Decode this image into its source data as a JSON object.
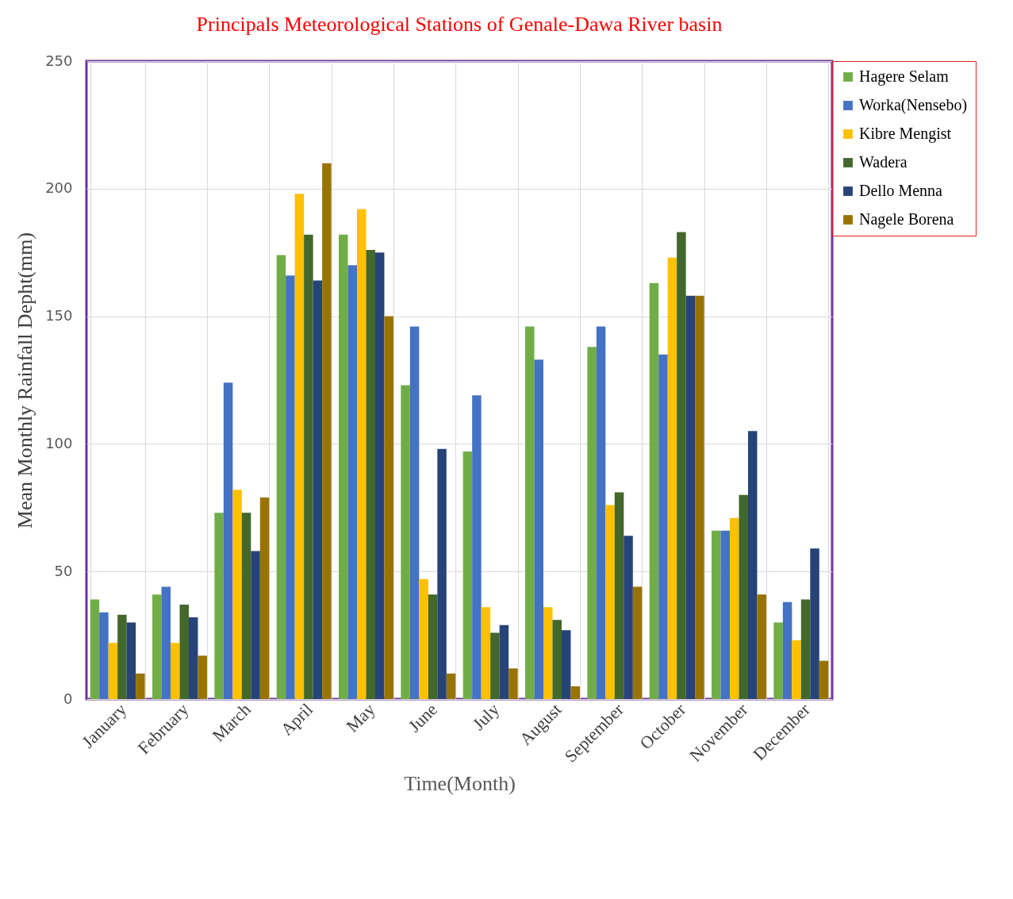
{
  "chart_data": {
    "type": "bar",
    "title": "Principals Meteorological Stations of Genale-Dawa River basin",
    "xlabel": "Time(Month)",
    "ylabel": "Mean Monthly Rainfall Depht(mm)",
    "categories": [
      "January",
      "February",
      "March",
      "April",
      "May",
      "June",
      "July",
      "August",
      "September",
      "October",
      "November",
      "December"
    ],
    "series": [
      {
        "name": "Hagere Selam",
        "color": "#70ad47",
        "values": [
          39,
          41,
          73,
          174,
          182,
          123,
          97,
          146,
          138,
          163,
          66,
          30
        ]
      },
      {
        "name": "Worka(Nensebo)",
        "color": "#4472c4",
        "values": [
          34,
          44,
          124,
          166,
          170,
          146,
          119,
          133,
          146,
          135,
          66,
          38
        ]
      },
      {
        "name": "Kibre Mengist",
        "color": "#ffc000",
        "values": [
          22,
          22,
          82,
          198,
          192,
          47,
          36,
          36,
          76,
          173,
          71,
          23
        ]
      },
      {
        "name": "Wadera",
        "color": "#43682b",
        "values": [
          33,
          37,
          73,
          182,
          176,
          41,
          26,
          31,
          81,
          183,
          80,
          39
        ]
      },
      {
        "name": "Dello Menna",
        "color": "#264478",
        "values": [
          30,
          32,
          58,
          164,
          175,
          98,
          29,
          27,
          64,
          158,
          105,
          59
        ]
      },
      {
        "name": "Nagele Borena",
        "color": "#997300",
        "values": [
          10,
          17,
          79,
          210,
          150,
          10,
          12,
          5,
          44,
          158,
          41,
          15
        ]
      }
    ],
    "ylim": [
      0,
      250
    ],
    "yticks": [
      0,
      50,
      100,
      150,
      200,
      250
    ],
    "grid": true,
    "legend": "top right"
  }
}
